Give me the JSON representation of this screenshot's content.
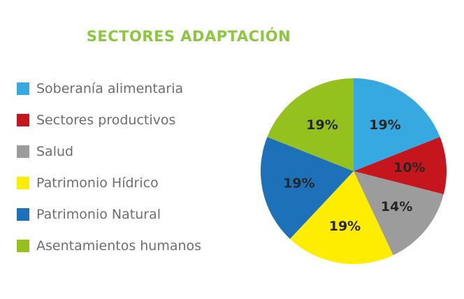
{
  "chart_data": {
    "type": "pie",
    "title": "SECTORES ADAPTACIÓN",
    "categories": [
      "Soberanía alimentaria",
      "Sectores productivos",
      "Salud",
      "Patrimonio Hídrico",
      "Patrimonio Natural",
      "Asentamientos humanos"
    ],
    "values": [
      19,
      10,
      14,
      19,
      19,
      19
    ],
    "value_labels": [
      "19%",
      "10%",
      "14%",
      "19%",
      "19%",
      "19%"
    ],
    "colors": [
      "#36a9e1",
      "#c4161c",
      "#9d9c9c",
      "#ffed00",
      "#1d71b8",
      "#95c11f"
    ],
    "legend": "left"
  },
  "colors": {
    "title": "#8dc63f",
    "legend_text": "#6d6e70"
  }
}
